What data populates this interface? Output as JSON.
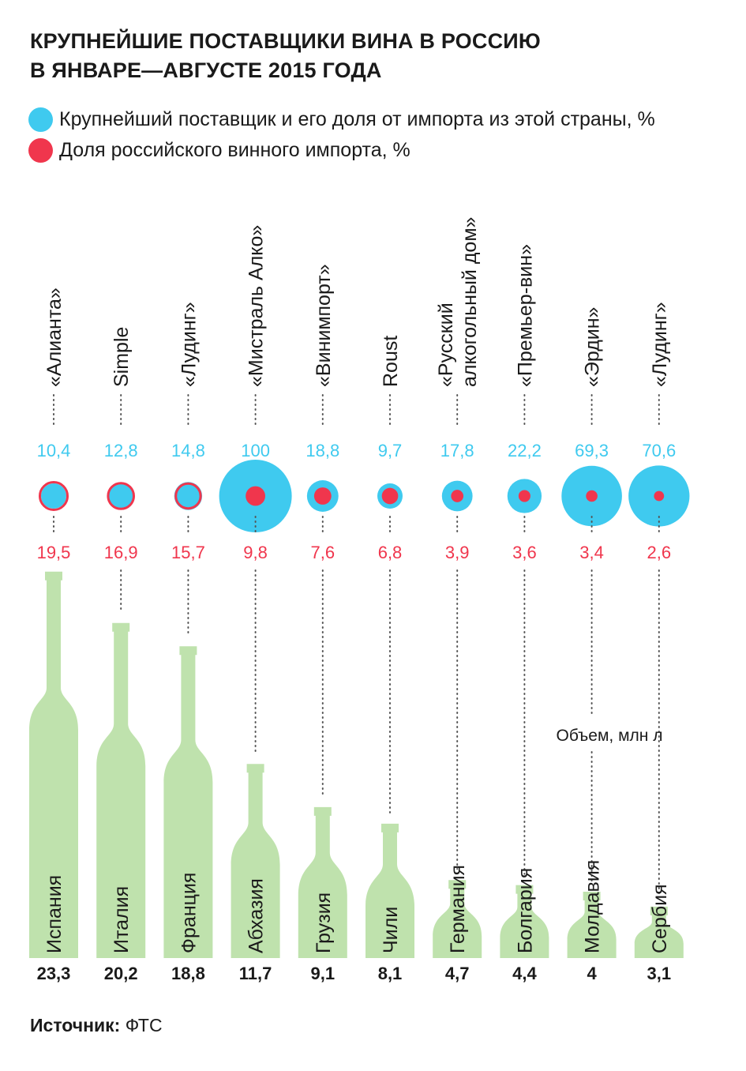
{
  "title": {
    "line1": "КРУПНЕЙШИЕ ПОСТАВЩИКИ ВИНА В РОССИЮ",
    "line2": "В ЯНВАРЕ—АВГУСТЕ 2015 ГОДА"
  },
  "legend": [
    {
      "label": "Крупнейший поставщик и его доля от импорта из этой страны, %",
      "color": "#3fcaef"
    },
    {
      "label": "Доля российского винного импорта, %",
      "color": "#f0364d"
    }
  ],
  "volume_label": "Объем, млн л",
  "source": {
    "label": "Источник:",
    "value": "ФТС"
  },
  "colors": {
    "blue": "#3fcaef",
    "red": "#f0364d",
    "bottle": "#bfe2ad"
  },
  "chart_data": {
    "type": "bar",
    "categories": [
      "Испания",
      "Италия",
      "Франция",
      "Абхазия",
      "Грузия",
      "Чили",
      "Германия",
      "Болгария",
      "Молдавия",
      "Сербия"
    ],
    "suppliers": [
      [
        "«Алианта»"
      ],
      [
        "Simple"
      ],
      [
        "«Лудинг»"
      ],
      [
        "«Мистраль Алко»"
      ],
      [
        "«Винимпорт»"
      ],
      [
        "Roust"
      ],
      [
        "«Русский",
        "алкогольный дом»"
      ],
      [
        "«Премьер-вин»"
      ],
      [
        "«Эрдин»"
      ],
      [
        "«Лудинг»"
      ]
    ],
    "series": [
      {
        "name": "Крупнейший поставщик и его доля от импорта из этой страны, %",
        "values": [
          10.4,
          12.8,
          14.8,
          100,
          18.8,
          9.7,
          17.8,
          22.2,
          69.3,
          70.6
        ],
        "labels": [
          "10,4",
          "12,8",
          "14,8",
          "100",
          "18,8",
          "9,7",
          "17,8",
          "22,2",
          "69,3",
          "70,6"
        ]
      },
      {
        "name": "Доля российского винного импорта, %",
        "values": [
          19.5,
          16.9,
          15.7,
          9.8,
          7.6,
          6.8,
          3.9,
          3.6,
          3.4,
          2.6
        ],
        "labels": [
          "19,5",
          "16,9",
          "15,7",
          "9,8",
          "7,6",
          "6,8",
          "3,9",
          "3,6",
          "3,4",
          "2,6"
        ]
      },
      {
        "name": "Объем, млн л",
        "values": [
          23.3,
          20.2,
          18.8,
          11.7,
          9.1,
          8.1,
          4.7,
          4.4,
          4,
          3.1
        ],
        "labels": [
          "23,3",
          "20,2",
          "18,8",
          "11,7",
          "9,1",
          "8,1",
          "4,7",
          "4,4",
          "4",
          "3,1"
        ]
      }
    ]
  }
}
